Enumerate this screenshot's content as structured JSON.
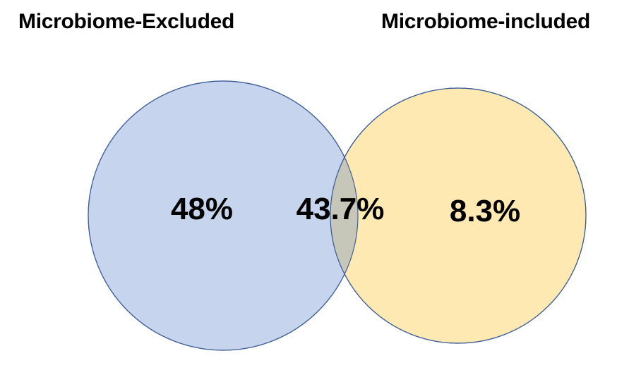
{
  "sets": {
    "left": {
      "title": "Microbiome-Excluded",
      "fill": "#c6d4ee",
      "stroke": "#3f5e98"
    },
    "right": {
      "title": "Microbiome-included",
      "fill": "#fde9b1",
      "stroke": "#3f5e98"
    }
  },
  "overlap": {
    "fill": "#c6c6b9"
  },
  "regions": {
    "left_only": "48%",
    "both": "43.7%",
    "right_only": "8.3%"
  }
}
